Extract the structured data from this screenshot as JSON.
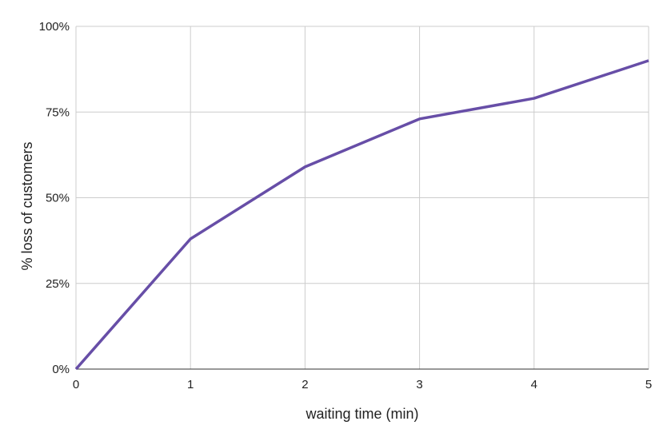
{
  "chart_data": {
    "type": "line",
    "x_label": "waiting time (min)",
    "y_label": "% loss of customers",
    "x": [
      0,
      1,
      2,
      3,
      4,
      5
    ],
    "series": [
      {
        "name": "% loss of customers",
        "color": "#674ea7",
        "values": [
          0,
          38,
          59,
          73,
          79,
          90
        ]
      }
    ],
    "xlim": [
      0,
      5
    ],
    "xticks": [
      0,
      1,
      2,
      3,
      4,
      5
    ],
    "ylim": [
      0,
      100
    ],
    "yticks": [
      {
        "value": 0,
        "label": "0%"
      },
      {
        "value": 25,
        "label": "25%"
      },
      {
        "value": 50,
        "label": "50%"
      },
      {
        "value": 75,
        "label": "75%"
      },
      {
        "value": 100,
        "label": "100%"
      }
    ],
    "grid": true
  }
}
